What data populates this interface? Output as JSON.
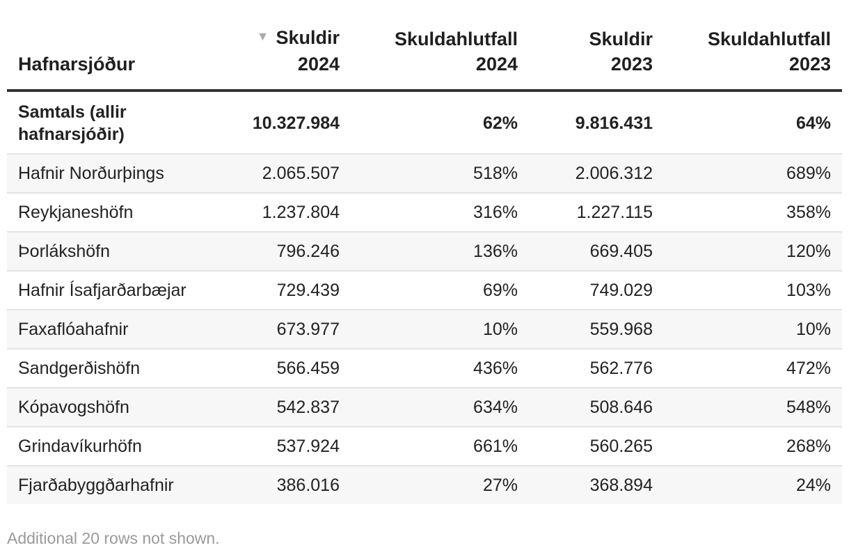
{
  "table": {
    "headers": [
      {
        "line1": "",
        "line2": "Hafnarsjóður"
      },
      {
        "line1": "Skuldir",
        "line2": "2024"
      },
      {
        "line1": "Skuldahlutfall",
        "line2": "2024"
      },
      {
        "line1": "Skuldir",
        "line2": "2023"
      },
      {
        "line1": "Skuldahlutfall",
        "line2": "2023"
      }
    ],
    "sort_indicator": "▼",
    "total": {
      "name": "Samtals (allir hafnarsjóðir)",
      "skuldir_2024": "10.327.984",
      "hlutfall_2024": "62%",
      "skuldir_2023": "9.816.431",
      "hlutfall_2023": "64%"
    },
    "rows": [
      {
        "name": "Hafnir Norðurþings",
        "skuldir_2024": "2.065.507",
        "hlutfall_2024": "518%",
        "skuldir_2023": "2.006.312",
        "hlutfall_2023": "689%"
      },
      {
        "name": "Reykjaneshöfn",
        "skuldir_2024": "1.237.804",
        "hlutfall_2024": "316%",
        "skuldir_2023": "1.227.115",
        "hlutfall_2023": "358%"
      },
      {
        "name": "Þorlákshöfn",
        "skuldir_2024": "796.246",
        "hlutfall_2024": "136%",
        "skuldir_2023": "669.405",
        "hlutfall_2023": "120%"
      },
      {
        "name": "Hafnir Ísafjarðarbæjar",
        "skuldir_2024": "729.439",
        "hlutfall_2024": "69%",
        "skuldir_2023": "749.029",
        "hlutfall_2023": "103%"
      },
      {
        "name": "Faxaflóahafnir",
        "skuldir_2024": "673.977",
        "hlutfall_2024": "10%",
        "skuldir_2023": "559.968",
        "hlutfall_2023": "10%"
      },
      {
        "name": "Sandgerðishöfn",
        "skuldir_2024": "566.459",
        "hlutfall_2024": "436%",
        "skuldir_2023": "562.776",
        "hlutfall_2023": "472%"
      },
      {
        "name": "Kópavogshöfn",
        "skuldir_2024": "542.837",
        "hlutfall_2024": "634%",
        "skuldir_2023": "508.646",
        "hlutfall_2023": "548%"
      },
      {
        "name": "Grindavíkurhöfn",
        "skuldir_2024": "537.924",
        "hlutfall_2024": "661%",
        "skuldir_2023": "560.265",
        "hlutfall_2023": "268%"
      },
      {
        "name": "Fjarðabyggðarhafnir",
        "skuldir_2024": "386.016",
        "hlutfall_2024": "27%",
        "skuldir_2023": "368.894",
        "hlutfall_2023": "24%"
      }
    ]
  },
  "footnote": "Additional 20 rows not shown."
}
